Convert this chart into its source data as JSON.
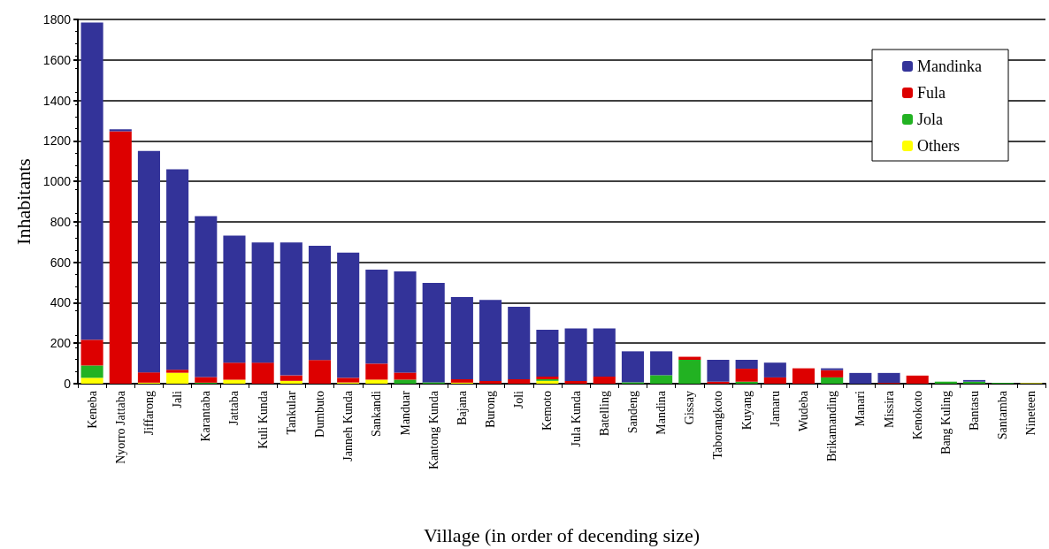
{
  "chart_data": {
    "type": "bar",
    "stacked": true,
    "xlabel": "Village (in order of decending size)",
    "ylabel": "Inhabitants",
    "categories": [
      "Keneba",
      "Nyorro Jattaba",
      "Jiffarong",
      "Jali",
      "Karantaba",
      "Jattaba",
      "Kuli Kunda",
      "Tankular",
      "Dumbuto",
      "Janneh Kunda",
      "Sankandi",
      "Manduar",
      "Kantong Kunda",
      "Bajana",
      "Burong",
      "Joli",
      "Kemoto",
      "Jula Kunda",
      "Batelling",
      "Sandeng",
      "Mandina",
      "Gissay",
      "Taborangkoto",
      "Kuyang",
      "Jamaru",
      "Wudeba",
      "Brikamanding",
      "Manari",
      "Missira",
      "Kenokoto",
      "Bang Kuling",
      "Bantasu",
      "Santamba",
      "Nineteen"
    ],
    "series": [
      {
        "name": "Others",
        "color": "#ffff00",
        "values": [
          29,
          0,
          5,
          54,
          0,
          20,
          0,
          14,
          0,
          6,
          20,
          0,
          0,
          5,
          0,
          0,
          14,
          0,
          0,
          0,
          0,
          0,
          0,
          0,
          0,
          0,
          0,
          0,
          0,
          0,
          0,
          0,
          0,
          3
        ]
      },
      {
        "name": "Jola",
        "color": "#22b222",
        "values": [
          61,
          0,
          0,
          0,
          5,
          0,
          0,
          0,
          0,
          0,
          0,
          20,
          7,
          0,
          0,
          0,
          8,
          0,
          0,
          7,
          42,
          118,
          0,
          10,
          0,
          0,
          31,
          0,
          0,
          0,
          10,
          10,
          4,
          0
        ]
      },
      {
        "name": "Fula",
        "color": "#dd0000",
        "values": [
          127,
          1247,
          51,
          15,
          28,
          84,
          104,
          27,
          117,
          23,
          79,
          35,
          0,
          17,
          13,
          22,
          13,
          13,
          35,
          0,
          0,
          15,
          10,
          64,
          31,
          76,
          36,
          0,
          4,
          40,
          0,
          0,
          0,
          0
        ]
      },
      {
        "name": "Mandinka",
        "color": "#333399",
        "values": [
          1568,
          10,
          1094,
          991,
          795,
          628,
          594,
          657,
          565,
          619,
          465,
          500,
          491,
          406,
          401,
          358,
          232,
          260,
          238,
          153,
          118,
          0,
          108,
          44,
          73,
          0,
          9,
          53,
          49,
          0,
          0,
          8,
          0,
          0
        ]
      }
    ],
    "ylim": [
      0,
      1800
    ],
    "yticks": [
      0,
      200,
      400,
      600,
      800,
      1000,
      1200,
      1400,
      1600,
      1800
    ],
    "grid": "y",
    "legend": "top right"
  }
}
